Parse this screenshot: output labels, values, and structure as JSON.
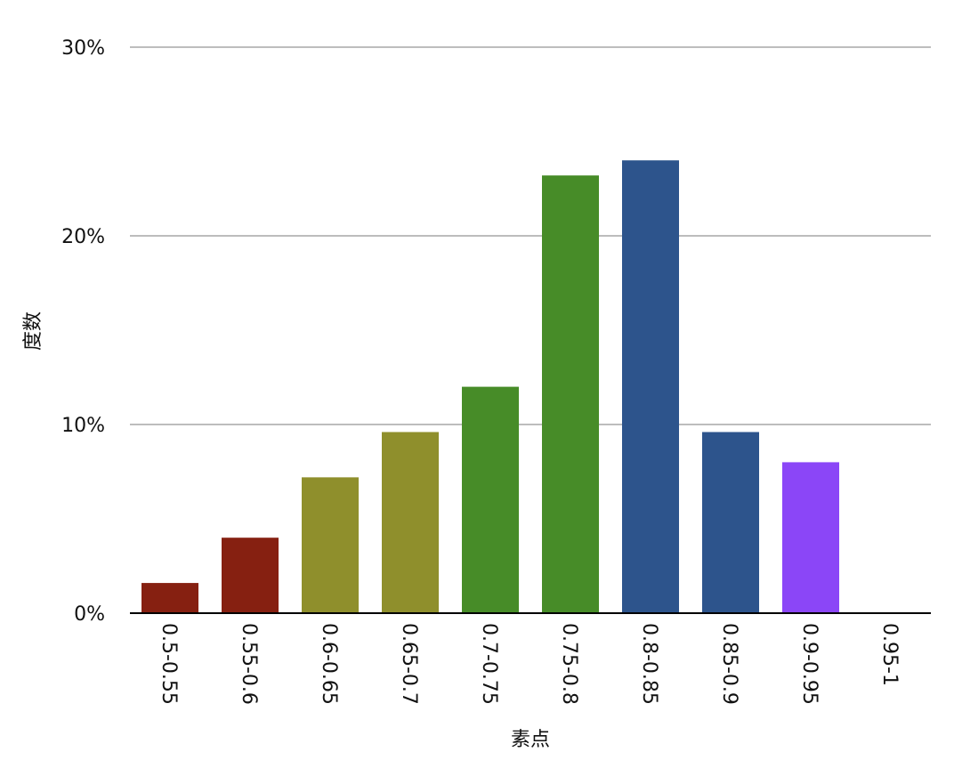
{
  "chart_data": {
    "type": "bar",
    "xlabel": "素点",
    "ylabel": "度数",
    "categories": [
      "0.5-0.55",
      "0.55-0.6",
      "0.6-0.65",
      "0.65-0.7",
      "0.7-0.75",
      "0.75-0.8",
      "0.8-0.85",
      "0.85-0.9",
      "0.9-0.95",
      "0.95-1"
    ],
    "values": [
      1.6,
      4.0,
      7.2,
      9.6,
      12.0,
      23.2,
      24.0,
      9.6,
      8.0,
      0.0
    ],
    "colors": [
      "#862011",
      "#862011",
      "#8f8f2c",
      "#8f8f2c",
      "#478c28",
      "#478c28",
      "#2d548c",
      "#2d548c",
      "#8b46f7",
      "#8b46f7"
    ],
    "ylim": [
      0,
      30
    ],
    "yticks": [
      0,
      10,
      20,
      30
    ],
    "ytick_labels": [
      "0%",
      "10%",
      "20%",
      "30%"
    ],
    "grid": true,
    "grid_color": "#bdbdbd",
    "axis_color": "#000000"
  }
}
